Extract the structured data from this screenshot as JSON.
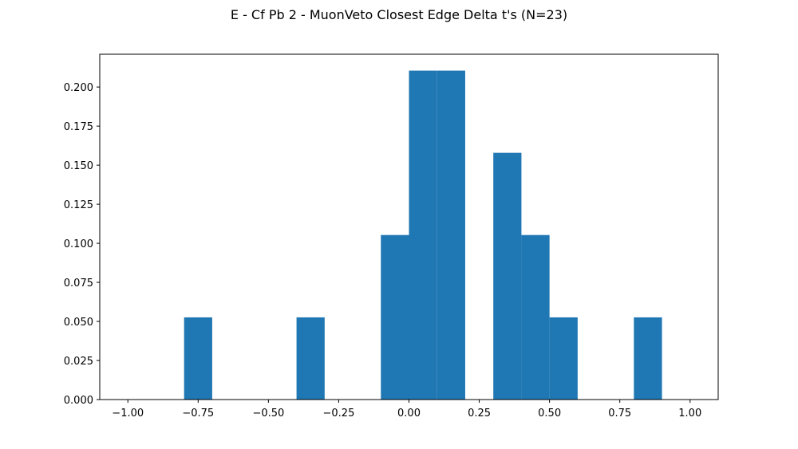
{
  "figure": {
    "title": "E - Cf Pb 2 - MuonVeto Closest Edge Delta t's (N=23)"
  },
  "chart_data": {
    "type": "bar",
    "title": "E - Cf Pb 2 - MuonVeto Closest Edge Delta t's (N=23)",
    "xlabel": "",
    "ylabel": "",
    "bar_color": "#1f77b4",
    "bin_width": 0.1,
    "bins": [
      {
        "x0": -0.8,
        "x1": -0.7,
        "value": 0.0526
      },
      {
        "x0": -0.4,
        "x1": -0.3,
        "value": 0.0526
      },
      {
        "x0": -0.1,
        "x1": 0.0,
        "value": 0.1053
      },
      {
        "x0": 0.0,
        "x1": 0.1,
        "value": 0.2105
      },
      {
        "x0": 0.1,
        "x1": 0.2,
        "value": 0.2105
      },
      {
        "x0": 0.3,
        "x1": 0.4,
        "value": 0.1579
      },
      {
        "x0": 0.4,
        "x1": 0.5,
        "value": 0.1053
      },
      {
        "x0": 0.5,
        "x1": 0.6,
        "value": 0.0526
      },
      {
        "x0": 0.8,
        "x1": 0.9,
        "value": 0.0526
      }
    ],
    "xlim": [
      -1.1,
      1.1
    ],
    "ylim": [
      0,
      0.221
    ],
    "x_ticks": [
      -1.0,
      -0.75,
      -0.5,
      -0.25,
      0.0,
      0.25,
      0.5,
      0.75,
      1.0
    ],
    "x_tick_labels": [
      "−1.00",
      "−0.75",
      "−0.50",
      "−0.25",
      "0.00",
      "0.25",
      "0.50",
      "0.75",
      "1.00"
    ],
    "y_ticks": [
      0.0,
      0.025,
      0.05,
      0.075,
      0.1,
      0.125,
      0.15,
      0.175,
      0.2
    ],
    "y_tick_labels": [
      "0.000",
      "0.025",
      "0.050",
      "0.075",
      "0.100",
      "0.125",
      "0.150",
      "0.175",
      "0.200"
    ],
    "grid": false,
    "legend": "none"
  }
}
